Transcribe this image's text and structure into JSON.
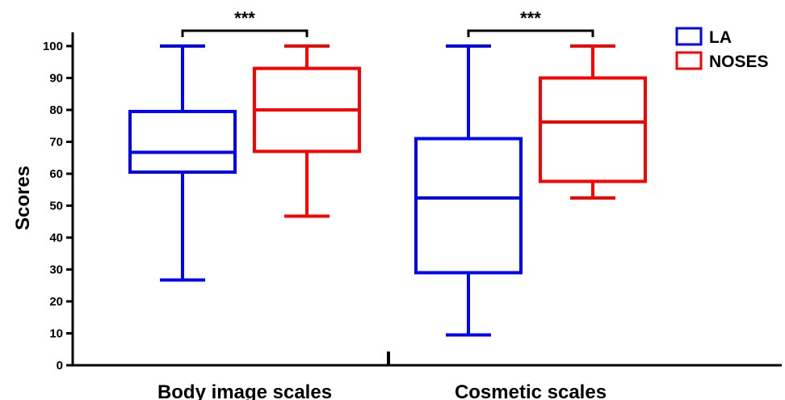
{
  "chart_data": {
    "type": "boxplot",
    "title": "",
    "xlabel": "",
    "ylabel": "Scores",
    "ylim": [
      0,
      100
    ],
    "yticks": [
      0,
      10,
      20,
      30,
      40,
      50,
      60,
      70,
      80,
      90,
      100
    ],
    "grid": false,
    "legend_position": "top-right",
    "categories": [
      "Body image scales",
      "Cosmetic scales"
    ],
    "series": [
      {
        "name": "LA",
        "color": "#0000ff",
        "boxes": [
          {
            "min": 26.7,
            "q1": 60.5,
            "median": 66.7,
            "q3": 79.5,
            "max": 100
          },
          {
            "min": 9.5,
            "q1": 29,
            "median": 52.4,
            "q3": 71,
            "max": 100
          }
        ]
      },
      {
        "name": "NOSES",
        "color": "#ff0000",
        "boxes": [
          {
            "min": 46.7,
            "q1": 67,
            "median": 80,
            "q3": 93,
            "max": 100
          },
          {
            "min": 52.4,
            "q1": 57.6,
            "median": 76.2,
            "q3": 90,
            "max": 100
          }
        ]
      }
    ],
    "annotations": [
      {
        "category": "Body image scales",
        "text": "***"
      },
      {
        "category": "Cosmetic scales",
        "text": "***"
      }
    ]
  }
}
